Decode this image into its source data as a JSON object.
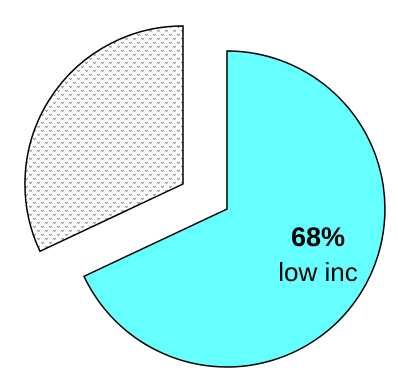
{
  "chart_data": {
    "type": "pie",
    "title": "",
    "slices": [
      {
        "label": "low inc",
        "value": 68,
        "value_label": "68%",
        "color": "#66ffff",
        "fill": "solid"
      },
      {
        "label": "",
        "value": 32,
        "value_label": "",
        "color": "#ffffff",
        "fill": "dotted-pattern"
      }
    ],
    "legend": "none",
    "exploded": true
  }
}
